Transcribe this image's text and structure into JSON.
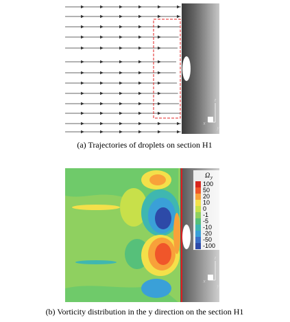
{
  "panels": [
    {
      "caption": "(a) Trajectories of droplets on section H1",
      "axes": {
        "z": "z",
        "x": "x",
        "y": "y"
      }
    },
    {
      "caption": "(b) Vorticity distribution in the y direction on the section H1",
      "axes": {
        "z": "z",
        "x": "x",
        "y": "y"
      },
      "legend": {
        "title": "Ω",
        "subscript": "y",
        "levels": [
          {
            "label": "100",
            "color": "#d7261e"
          },
          {
            "label": "50",
            "color": "#f0562a"
          },
          {
            "label": "20",
            "color": "#f8a13a"
          },
          {
            "label": "10",
            "color": "#f4e04a"
          },
          {
            "label": "0",
            "color": "#c8e04a"
          },
          {
            "label": "-1",
            "color": "#8fd060"
          },
          {
            "label": "-5",
            "color": "#56c07a"
          },
          {
            "label": "-10",
            "color": "#3fb7b0"
          },
          {
            "label": "-20",
            "color": "#3aa0d8"
          },
          {
            "label": "-50",
            "color": "#3a70c8"
          },
          {
            "label": "-100",
            "color": "#2d4aa8"
          }
        ]
      }
    }
  ]
}
